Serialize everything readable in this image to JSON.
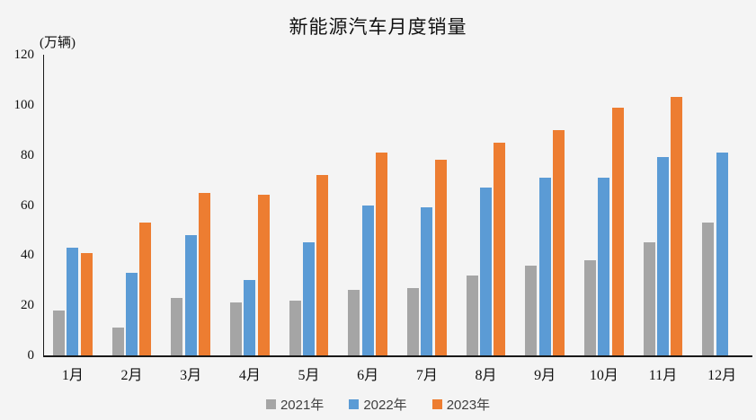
{
  "chart_data": {
    "type": "bar",
    "title": "新能源汽车月度销量",
    "unit_label": "(万辆)",
    "categories": [
      "1月",
      "2月",
      "3月",
      "4月",
      "5月",
      "6月",
      "7月",
      "8月",
      "9月",
      "10月",
      "11月",
      "12月"
    ],
    "series": [
      {
        "name": "2021年",
        "color": "#A5A5A5",
        "values": [
          18,
          11,
          23,
          21,
          22,
          26,
          27,
          32,
          36,
          38,
          45,
          53
        ]
      },
      {
        "name": "2022年",
        "color": "#5B9BD5",
        "values": [
          43,
          33,
          48,
          30,
          45,
          60,
          59,
          67,
          71,
          71,
          79,
          81
        ]
      },
      {
        "name": "2023年",
        "color": "#ED7D31",
        "values": [
          41,
          53,
          65,
          64,
          72,
          81,
          78,
          85,
          90,
          99,
          103,
          null
        ]
      }
    ],
    "ylim": [
      0,
      120
    ],
    "yticks": [
      0,
      20,
      40,
      60,
      80,
      100,
      120
    ],
    "xlabel": "",
    "ylabel": "",
    "grid": false,
    "legend_position": "bottom",
    "colors": {
      "background": "#F4F4F4",
      "axis": "#1A1A1A",
      "text": "#111111",
      "legend_text": "#404040"
    }
  }
}
